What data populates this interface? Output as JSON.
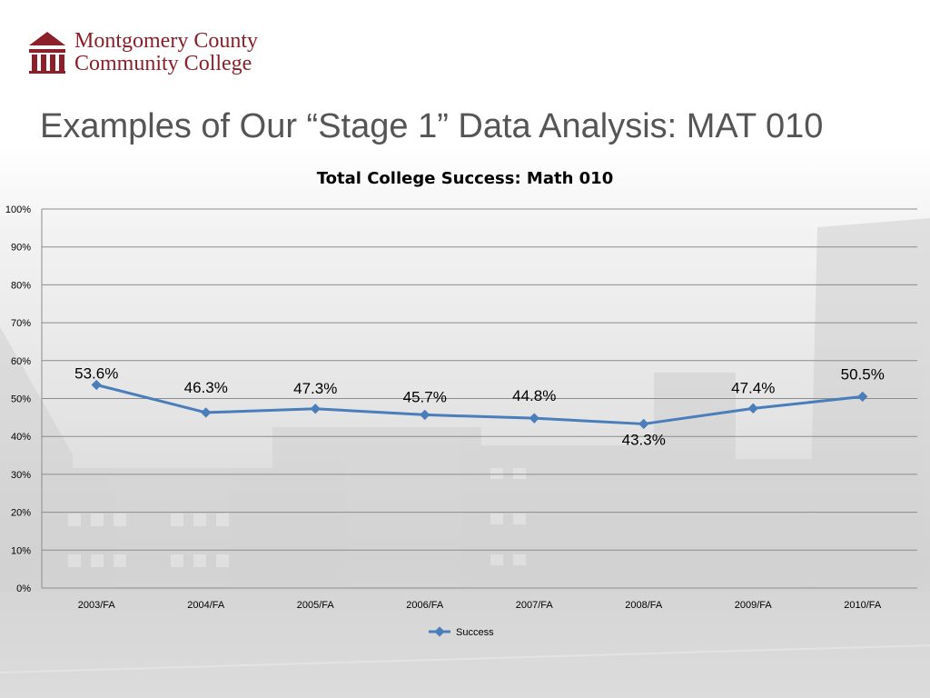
{
  "logo": {
    "line1": "Montgomery County",
    "line2": "Community College",
    "color": "#8b1f2a"
  },
  "slide_title": "Examples of Our “Stage 1” Data Analysis:  MAT 010",
  "chart_data": {
    "type": "line",
    "title": "Total College Success: Math 010",
    "xlabel": "",
    "ylabel": "",
    "categories": [
      "2003/FA",
      "2004/FA",
      "2005/FA",
      "2006/FA",
      "2007/FA",
      "2008/FA",
      "2009/FA",
      "2010/FA"
    ],
    "series": [
      {
        "name": "Success",
        "values": [
          53.6,
          46.3,
          47.3,
          45.7,
          44.8,
          43.3,
          47.4,
          50.5
        ],
        "data_labels": [
          "53.6%",
          "46.3%",
          "47.3%",
          "45.7%",
          "44.8%",
          "43.3%",
          "47.4%",
          "50.5%"
        ],
        "color": "#4a7ebb"
      }
    ],
    "ylim": [
      0,
      100
    ],
    "yticks": [
      0,
      10,
      20,
      30,
      40,
      50,
      60,
      70,
      80,
      90,
      100
    ],
    "ytick_labels": [
      "0%",
      "10%",
      "20%",
      "30%",
      "40%",
      "50%",
      "60%",
      "70%",
      "80%",
      "90%",
      "100%"
    ],
    "grid": true,
    "legend_position": "bottom"
  }
}
